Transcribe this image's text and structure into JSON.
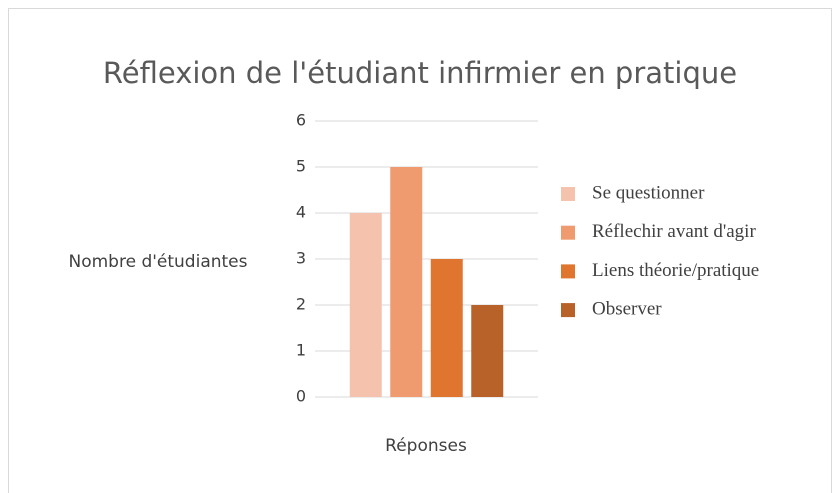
{
  "chart_data": {
    "type": "bar",
    "title": "Réflexion de l'étudiant infirmier en pratique",
    "x_label": "Réponses",
    "y_label": "Nombre d'étudiantes",
    "categories": [
      null
    ],
    "series": [
      {
        "name": "Se questionner",
        "color": "#f4c2ad",
        "values": [
          4
        ]
      },
      {
        "name": "Réflechir avant d'agir",
        "color": "#f09a6f",
        "values": [
          5
        ]
      },
      {
        "name": "Liens théorie/pratique",
        "color": "#e07530",
        "values": [
          3
        ]
      },
      {
        "name": "Observer",
        "color": "#b86129",
        "values": [
          2
        ]
      }
    ],
    "ylim": [
      0,
      6
    ],
    "yticks": [
      0,
      1,
      2,
      3,
      4,
      5,
      6
    ],
    "grid": true,
    "legend": "right"
  }
}
